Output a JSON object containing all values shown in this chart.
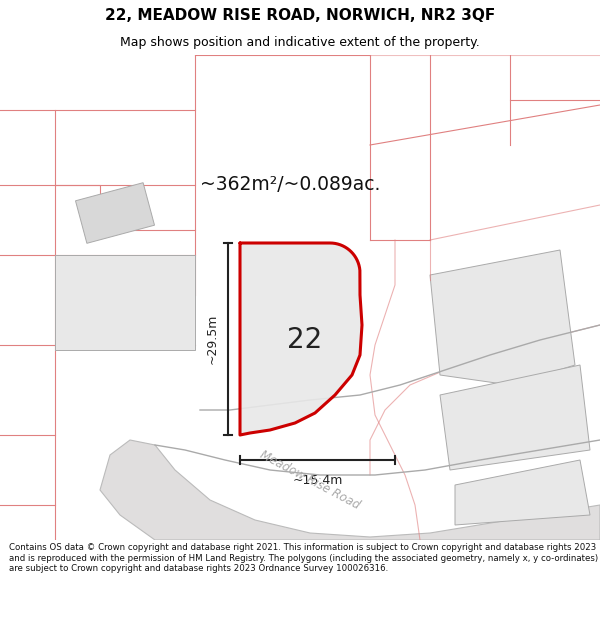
{
  "title": "22, MEADOW RISE ROAD, NORWICH, NR2 3QF",
  "subtitle": "Map shows position and indicative extent of the property.",
  "area_text": "~362m²/~0.089ac.",
  "label_22": "22",
  "dim_height": "~29.5m",
  "dim_width": "~15.4m",
  "road_label": "Meadow Rise Road",
  "footer": "Contains OS data © Crown copyright and database right 2021. This information is subject to Crown copyright and database rights 2023 and is reproduced with the permission of HM Land Registry. The polygons (including the associated geometry, namely x, y co-ordinates) are subject to Crown copyright and database rights 2023 Ordnance Survey 100026316.",
  "map_bg": "#ffffff",
  "header_bg": "#ffffff",
  "plot22_fill": "#e8e8e8",
  "plot22_edge": "#cc0000",
  "road_gray_fill": "#d8d8d8",
  "road_gray_edge": "#aaaaaa",
  "block_fill": "#e8e8e8",
  "block_edge": "#bbbbbb",
  "parcel_edge": "#e08080",
  "parcel_fill": "#ffffff",
  "small_bldg_fill": "#d8d8d8",
  "dim_color": "#222222",
  "road_text_color": "#aaaaaa",
  "footer_text": "#111111"
}
